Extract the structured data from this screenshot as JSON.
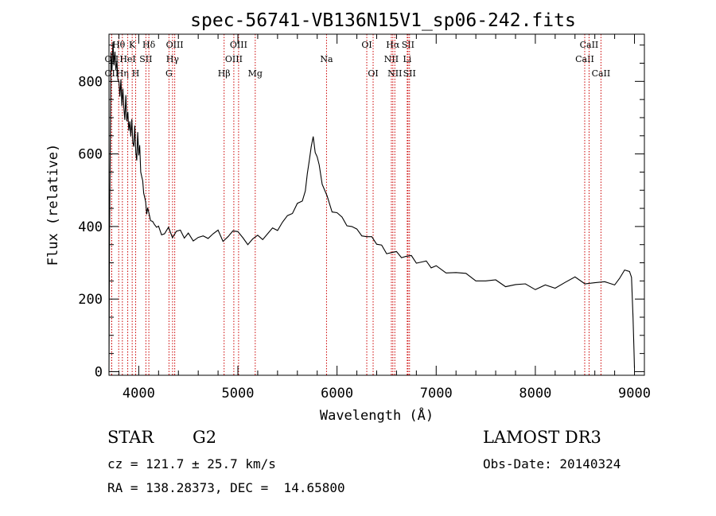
{
  "chart_data": {
    "type": "line",
    "title": "spec-56741-VB136N15V1_sp06-242.fits",
    "xlabel": "Wavelength (Å)",
    "ylabel": "Flux (relative)",
    "xlim": [
      3700,
      9100
    ],
    "ylim": [
      -10,
      930
    ],
    "xticks": [
      4000,
      5000,
      6000,
      7000,
      8000,
      9000
    ],
    "yticks": [
      0,
      200,
      400,
      600,
      800
    ],
    "series": [
      {
        "name": "flux",
        "x": [
          3700,
          3705,
          3712,
          3720,
          3730,
          3740,
          3750,
          3760,
          3770,
          3780,
          3790,
          3800,
          3810,
          3820,
          3830,
          3840,
          3850,
          3860,
          3870,
          3880,
          3890,
          3900,
          3910,
          3920,
          3930,
          3940,
          3950,
          3960,
          3970,
          3980,
          3990,
          4000,
          4010,
          4020,
          4030,
          4040,
          4050,
          4060,
          4070,
          4080,
          4090,
          4100,
          4120,
          4140,
          4160,
          4180,
          4200,
          4230,
          4260,
          4300,
          4340,
          4380,
          4420,
          4460,
          4500,
          4550,
          4600,
          4650,
          4700,
          4750,
          4800,
          4850,
          4900,
          4950,
          5000,
          5050,
          5100,
          5150,
          5200,
          5250,
          5300,
          5350,
          5400,
          5450,
          5500,
          5550,
          5600,
          5650,
          5680,
          5700,
          5720,
          5740,
          5760,
          5780,
          5800,
          5820,
          5850,
          5900,
          5950,
          6000,
          6050,
          6100,
          6150,
          6200,
          6250,
          6300,
          6350,
          6400,
          6450,
          6500,
          6550,
          6600,
          6650,
          6700,
          6750,
          6800,
          6850,
          6900,
          6950,
          7000,
          7100,
          7200,
          7300,
          7400,
          7500,
          7600,
          7700,
          7800,
          7900,
          8000,
          8100,
          8200,
          8300,
          8400,
          8500,
          8600,
          8700,
          8800,
          8850,
          8900,
          8950,
          8970,
          8985,
          8995,
          9000
        ],
        "y": [
          0,
          360,
          600,
          880,
          830,
          900,
          850,
          880,
          820,
          860,
          800,
          810,
          760,
          800,
          740,
          780,
          720,
          700,
          760,
          680,
          720,
          660,
          700,
          650,
          690,
          640,
          620,
          670,
          610,
          580,
          650,
          600,
          620,
          560,
          540,
          520,
          500,
          480,
          460,
          440,
          450,
          430,
          420,
          410,
          415,
          400,
          395,
          385,
          380,
          390,
          375,
          385,
          380,
          372,
          378,
          370,
          372,
          368,
          375,
          380,
          382,
          365,
          370,
          378,
          390,
          365,
          360,
          368,
          370,
          372,
          380,
          388,
          395,
          410,
          420,
          440,
          460,
          480,
          500,
          540,
          590,
          620,
          640,
          610,
          590,
          560,
          520,
          480,
          450,
          440,
          420,
          410,
          400,
          385,
          380,
          370,
          362,
          355,
          345,
          335,
          330,
          325,
          322,
          318,
          312,
          305,
          300,
          295,
          290,
          288,
          282,
          275,
          265,
          258,
          250,
          245,
          240,
          238,
          232,
          230,
          235,
          240,
          248,
          255,
          250,
          245,
          240,
          245,
          255,
          270,
          280,
          260,
          150,
          60,
          10
        ]
      }
    ],
    "lines": [
      {
        "name": "OII",
        "wavelength": 3727,
        "row": 1
      },
      {
        "name": "OII",
        "wavelength": 3727,
        "row": 2
      },
      {
        "name": "Hθ",
        "wavelength": 3798,
        "row": 0
      },
      {
        "name": "Hη",
        "wavelength": 3835,
        "row": 2
      },
      {
        "name": "HeI",
        "wavelength": 3889,
        "row": 1
      },
      {
        "name": "K",
        "wavelength": 3934,
        "row": 0
      },
      {
        "name": "H",
        "wavelength": 3969,
        "row": 2
      },
      {
        "name": "SII",
        "wavelength": 4072,
        "row": 1
      },
      {
        "name": "Hδ",
        "wavelength": 4102,
        "row": 0
      },
      {
        "name": "G",
        "wavelength": 4305,
        "row": 2
      },
      {
        "name": "Hγ",
        "wavelength": 4341,
        "row": 1
      },
      {
        "name": "OIII",
        "wavelength": 4363,
        "row": 0
      },
      {
        "name": "Hβ",
        "wavelength": 4861,
        "row": 2
      },
      {
        "name": "OIII",
        "wavelength": 4959,
        "row": 1
      },
      {
        "name": "OIII",
        "wavelength": 5007,
        "row": 0
      },
      {
        "name": "Mg",
        "wavelength": 5175,
        "row": 2
      },
      {
        "name": "Na",
        "wavelength": 5894,
        "row": 1
      },
      {
        "name": "OI",
        "wavelength": 6300,
        "row": 0
      },
      {
        "name": "OI",
        "wavelength": 6364,
        "row": 2
      },
      {
        "name": "NII",
        "wavelength": 6548,
        "row": 1
      },
      {
        "name": "Hα",
        "wavelength": 6563,
        "row": 0
      },
      {
        "name": "NII",
        "wavelength": 6583,
        "row": 2
      },
      {
        "name": "Li",
        "wavelength": 6708,
        "row": 1
      },
      {
        "name": "SII",
        "wavelength": 6716,
        "row": 0
      },
      {
        "name": "SII",
        "wavelength": 6731,
        "row": 2
      },
      {
        "name": "CaII",
        "wavelength": 8498,
        "row": 1
      },
      {
        "name": "CaII",
        "wavelength": 8542,
        "row": 0
      },
      {
        "name": "CaII",
        "wavelength": 8662,
        "row": 2
      }
    ]
  },
  "footer": {
    "class": "STAR",
    "subclass": "G2",
    "survey": "LAMOST DR3",
    "cz": "cz = 121.7 ± 25.7 km/s",
    "obs_date": "Obs-Date: 20140324",
    "radec": "RA = 138.28373, DEC =  14.65800"
  }
}
